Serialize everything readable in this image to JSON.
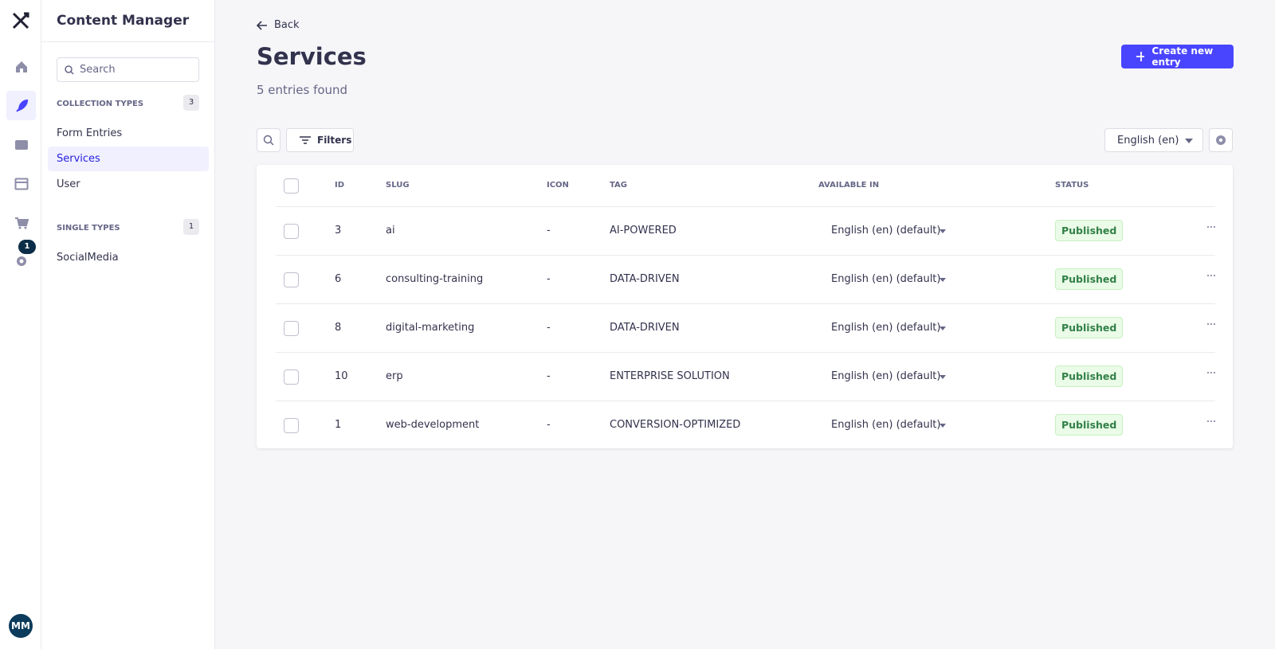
{
  "nav": {
    "badge": 1,
    "avatar": "MM"
  },
  "sidebar": {
    "title": "Content Manager",
    "search_placeholder": "Search",
    "sections": [
      {
        "title": "COLLECTION TYPES",
        "count": 3,
        "items": [
          "Form Entries",
          "Services",
          "User"
        ]
      },
      {
        "title": "SINGLE TYPES",
        "count": 1,
        "items": [
          "SocialMedia"
        ]
      }
    ]
  },
  "header": {
    "back": "Back",
    "title": "Services",
    "subtitle": "5 entries found",
    "create": "Create new entry"
  },
  "toolbar": {
    "filters": "Filters",
    "locale": "English (en)"
  },
  "table": {
    "columns": [
      "ID",
      "SLUG",
      "ICON",
      "TAG",
      "AVAILABLE IN",
      "STATUS"
    ],
    "rows": [
      [
        3,
        "ai",
        "-",
        "AI-POWERED",
        "English (en) (default)",
        "Published"
      ],
      [
        6,
        "consulting-training",
        "-",
        "DATA-DRIVEN",
        "English (en) (default)",
        "Published"
      ],
      [
        8,
        "digital-marketing",
        "-",
        "DATA-DRIVEN",
        "English (en) (default)",
        "Published"
      ],
      [
        10,
        "erp",
        "-",
        "ENTERPRISE SOLUTION",
        "English (en) (default)",
        "Published"
      ],
      [
        1,
        "web-development",
        "-",
        "CONVERSION-OPTIMIZED",
        "English (en) (default)",
        "Published"
      ]
    ]
  }
}
